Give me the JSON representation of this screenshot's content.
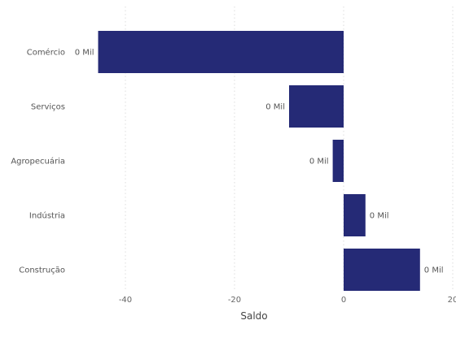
{
  "chart_data": {
    "type": "bar",
    "orientation": "horizontal",
    "categories": [
      "Comércio",
      "Serviços",
      "Agropecuária",
      "Indústria",
      "Construção"
    ],
    "values": [
      -45,
      -10,
      -2,
      4,
      14
    ],
    "data_labels": [
      "0 Mil",
      "0 Mil",
      "0 Mil",
      "0 Mil",
      "0 Mil"
    ],
    "xlabel": "Saldo",
    "xlim": [
      -50,
      20
    ],
    "xticks": [
      -40,
      -20,
      0,
      20
    ],
    "xtick_labels": [
      "-40",
      "-20",
      "0",
      "20"
    ],
    "grid": "vertical-dotted",
    "legend": "none",
    "colors": {
      "bar": "#252a76"
    }
  }
}
